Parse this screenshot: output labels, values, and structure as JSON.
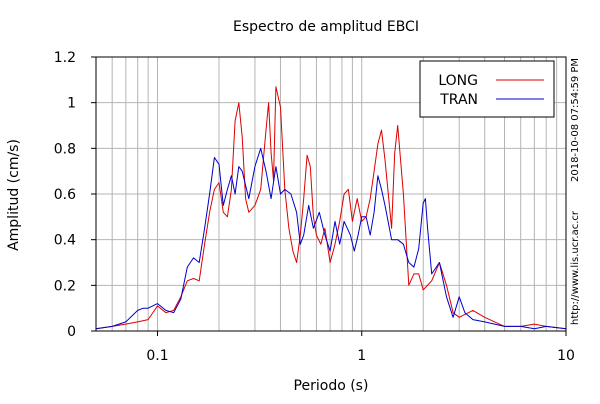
{
  "chart_data": {
    "type": "line",
    "title": "Espectro de amplitud EBCI",
    "xlabel": "Periodo (s)",
    "ylabel": "Amplitud (cm/s)",
    "x_scale": "log",
    "xlim": [
      0.05,
      10
    ],
    "ylim": [
      0,
      1.2
    ],
    "grid": true,
    "legend_position": "top-right",
    "x_ticks": [
      {
        "value": 0.1,
        "label": "0.1"
      },
      {
        "value": 1,
        "label": "1"
      },
      {
        "value": 10,
        "label": "10"
      }
    ],
    "y_ticks": [
      {
        "value": 0,
        "label": "0"
      },
      {
        "value": 0.2,
        "label": "0.2"
      },
      {
        "value": 0.4,
        "label": "0.4"
      },
      {
        "value": 0.6,
        "label": "0.6"
      },
      {
        "value": 0.8,
        "label": "0.8"
      },
      {
        "value": 1,
        "label": "1"
      },
      {
        "value": 1.2,
        "label": "1.2"
      }
    ],
    "series": [
      {
        "name": "LONG",
        "color": "#dd0000",
        "points": [
          [
            0.05,
            0.01
          ],
          [
            0.06,
            0.02
          ],
          [
            0.07,
            0.03
          ],
          [
            0.08,
            0.04
          ],
          [
            0.09,
            0.05
          ],
          [
            0.1,
            0.11
          ],
          [
            0.11,
            0.08
          ],
          [
            0.12,
            0.09
          ],
          [
            0.13,
            0.15
          ],
          [
            0.14,
            0.22
          ],
          [
            0.15,
            0.23
          ],
          [
            0.16,
            0.22
          ],
          [
            0.17,
            0.38
          ],
          [
            0.18,
            0.52
          ],
          [
            0.19,
            0.62
          ],
          [
            0.2,
            0.65
          ],
          [
            0.21,
            0.52
          ],
          [
            0.22,
            0.5
          ],
          [
            0.23,
            0.62
          ],
          [
            0.24,
            0.92
          ],
          [
            0.25,
            1.0
          ],
          [
            0.26,
            0.85
          ],
          [
            0.27,
            0.58
          ],
          [
            0.28,
            0.52
          ],
          [
            0.3,
            0.55
          ],
          [
            0.32,
            0.62
          ],
          [
            0.34,
            0.88
          ],
          [
            0.35,
            1.0
          ],
          [
            0.36,
            0.78
          ],
          [
            0.37,
            0.66
          ],
          [
            0.38,
            1.07
          ],
          [
            0.4,
            0.98
          ],
          [
            0.42,
            0.62
          ],
          [
            0.44,
            0.45
          ],
          [
            0.46,
            0.35
          ],
          [
            0.48,
            0.3
          ],
          [
            0.5,
            0.42
          ],
          [
            0.52,
            0.58
          ],
          [
            0.54,
            0.77
          ],
          [
            0.56,
            0.72
          ],
          [
            0.58,
            0.5
          ],
          [
            0.6,
            0.42
          ],
          [
            0.63,
            0.38
          ],
          [
            0.66,
            0.45
          ],
          [
            0.7,
            0.3
          ],
          [
            0.74,
            0.38
          ],
          [
            0.78,
            0.48
          ],
          [
            0.82,
            0.6
          ],
          [
            0.86,
            0.62
          ],
          [
            0.9,
            0.48
          ],
          [
            0.95,
            0.58
          ],
          [
            1.0,
            0.48
          ],
          [
            1.05,
            0.5
          ],
          [
            1.1,
            0.58
          ],
          [
            1.15,
            0.7
          ],
          [
            1.2,
            0.82
          ],
          [
            1.25,
            0.88
          ],
          [
            1.3,
            0.75
          ],
          [
            1.4,
            0.45
          ],
          [
            1.45,
            0.78
          ],
          [
            1.5,
            0.9
          ],
          [
            1.6,
            0.6
          ],
          [
            1.7,
            0.2
          ],
          [
            1.8,
            0.25
          ],
          [
            1.9,
            0.25
          ],
          [
            2.0,
            0.18
          ],
          [
            2.2,
            0.22
          ],
          [
            2.4,
            0.3
          ],
          [
            2.6,
            0.2
          ],
          [
            2.8,
            0.08
          ],
          [
            3.0,
            0.06
          ],
          [
            3.5,
            0.09
          ],
          [
            4.0,
            0.06
          ],
          [
            5.0,
            0.02
          ],
          [
            6.0,
            0.02
          ],
          [
            7.0,
            0.03
          ],
          [
            8.0,
            0.02
          ],
          [
            10.0,
            0.01
          ]
        ]
      },
      {
        "name": "TRAN",
        "color": "#0000cc",
        "points": [
          [
            0.05,
            0.01
          ],
          [
            0.06,
            0.02
          ],
          [
            0.07,
            0.04
          ],
          [
            0.08,
            0.09
          ],
          [
            0.085,
            0.1
          ],
          [
            0.09,
            0.1
          ],
          [
            0.1,
            0.12
          ],
          [
            0.11,
            0.09
          ],
          [
            0.12,
            0.08
          ],
          [
            0.13,
            0.14
          ],
          [
            0.14,
            0.28
          ],
          [
            0.15,
            0.32
          ],
          [
            0.16,
            0.3
          ],
          [
            0.17,
            0.45
          ],
          [
            0.18,
            0.6
          ],
          [
            0.19,
            0.76
          ],
          [
            0.2,
            0.73
          ],
          [
            0.21,
            0.55
          ],
          [
            0.22,
            0.62
          ],
          [
            0.23,
            0.68
          ],
          [
            0.24,
            0.6
          ],
          [
            0.25,
            0.72
          ],
          [
            0.26,
            0.7
          ],
          [
            0.28,
            0.58
          ],
          [
            0.3,
            0.72
          ],
          [
            0.32,
            0.8
          ],
          [
            0.34,
            0.7
          ],
          [
            0.36,
            0.58
          ],
          [
            0.38,
            0.72
          ],
          [
            0.4,
            0.6
          ],
          [
            0.42,
            0.62
          ],
          [
            0.45,
            0.6
          ],
          [
            0.48,
            0.52
          ],
          [
            0.5,
            0.38
          ],
          [
            0.52,
            0.42
          ],
          [
            0.55,
            0.55
          ],
          [
            0.58,
            0.45
          ],
          [
            0.62,
            0.52
          ],
          [
            0.66,
            0.42
          ],
          [
            0.7,
            0.35
          ],
          [
            0.74,
            0.48
          ],
          [
            0.78,
            0.38
          ],
          [
            0.82,
            0.48
          ],
          [
            0.88,
            0.42
          ],
          [
            0.92,
            0.35
          ],
          [
            0.96,
            0.42
          ],
          [
            1.0,
            0.5
          ],
          [
            1.05,
            0.5
          ],
          [
            1.1,
            0.42
          ],
          [
            1.15,
            0.52
          ],
          [
            1.2,
            0.68
          ],
          [
            1.25,
            0.62
          ],
          [
            1.3,
            0.55
          ],
          [
            1.4,
            0.4
          ],
          [
            1.5,
            0.4
          ],
          [
            1.6,
            0.38
          ],
          [
            1.7,
            0.3
          ],
          [
            1.8,
            0.28
          ],
          [
            1.9,
            0.36
          ],
          [
            2.0,
            0.56
          ],
          [
            2.05,
            0.58
          ],
          [
            2.1,
            0.45
          ],
          [
            2.2,
            0.25
          ],
          [
            2.4,
            0.3
          ],
          [
            2.6,
            0.15
          ],
          [
            2.8,
            0.06
          ],
          [
            3.0,
            0.15
          ],
          [
            3.2,
            0.08
          ],
          [
            3.5,
            0.05
          ],
          [
            4.0,
            0.04
          ],
          [
            5.0,
            0.02
          ],
          [
            6.0,
            0.02
          ],
          [
            7.0,
            0.01
          ],
          [
            8.0,
            0.02
          ],
          [
            10.0,
            0.01
          ]
        ]
      }
    ],
    "side_text": {
      "timestamp": "2018-10-08 07:54:59 PM",
      "url": "http://www.lis.ucr.ac.cr"
    }
  }
}
